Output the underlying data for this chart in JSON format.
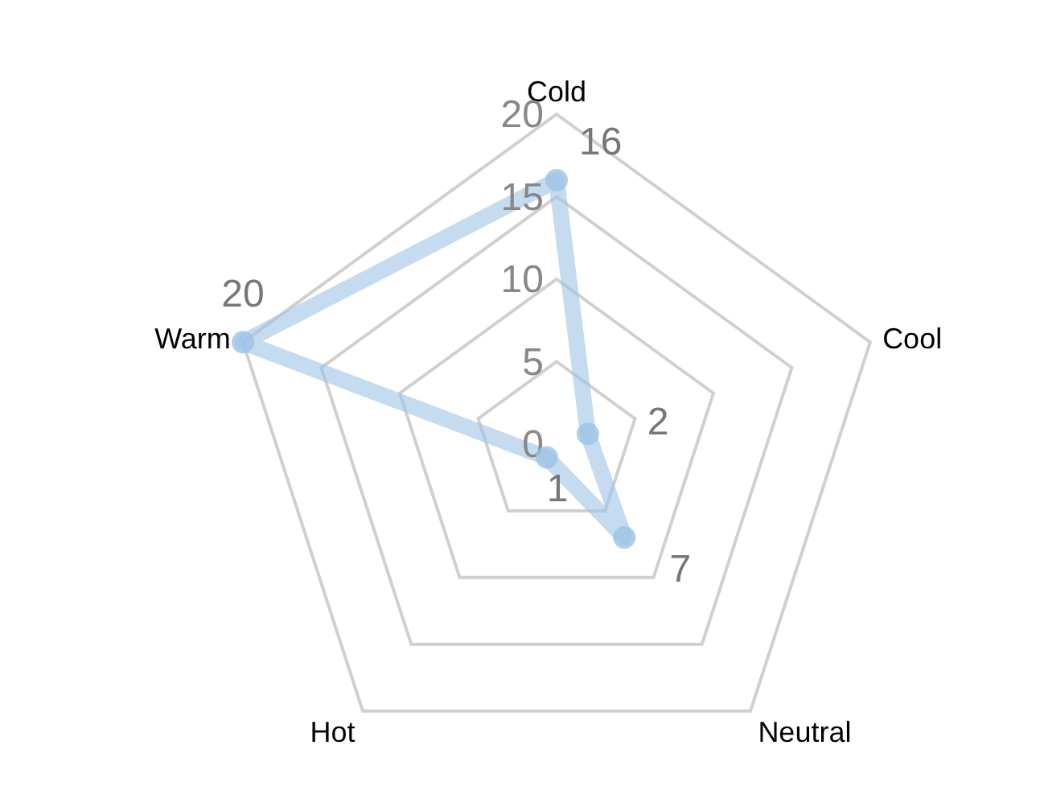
{
  "chart_data": {
    "type": "radar",
    "categories": [
      "Cold",
      "Cool",
      "Neutral",
      "Hot",
      "Warm"
    ],
    "series": [
      {
        "color": "#9dc3e6",
        "values": [
          16,
          2,
          7,
          1,
          20
        ]
      }
    ],
    "ylim": [
      0,
      20
    ],
    "yticks": [
      0,
      5,
      10,
      15,
      20
    ],
    "grid": true,
    "marker": "circle",
    "data_labels": true,
    "line_style": "solid"
  }
}
